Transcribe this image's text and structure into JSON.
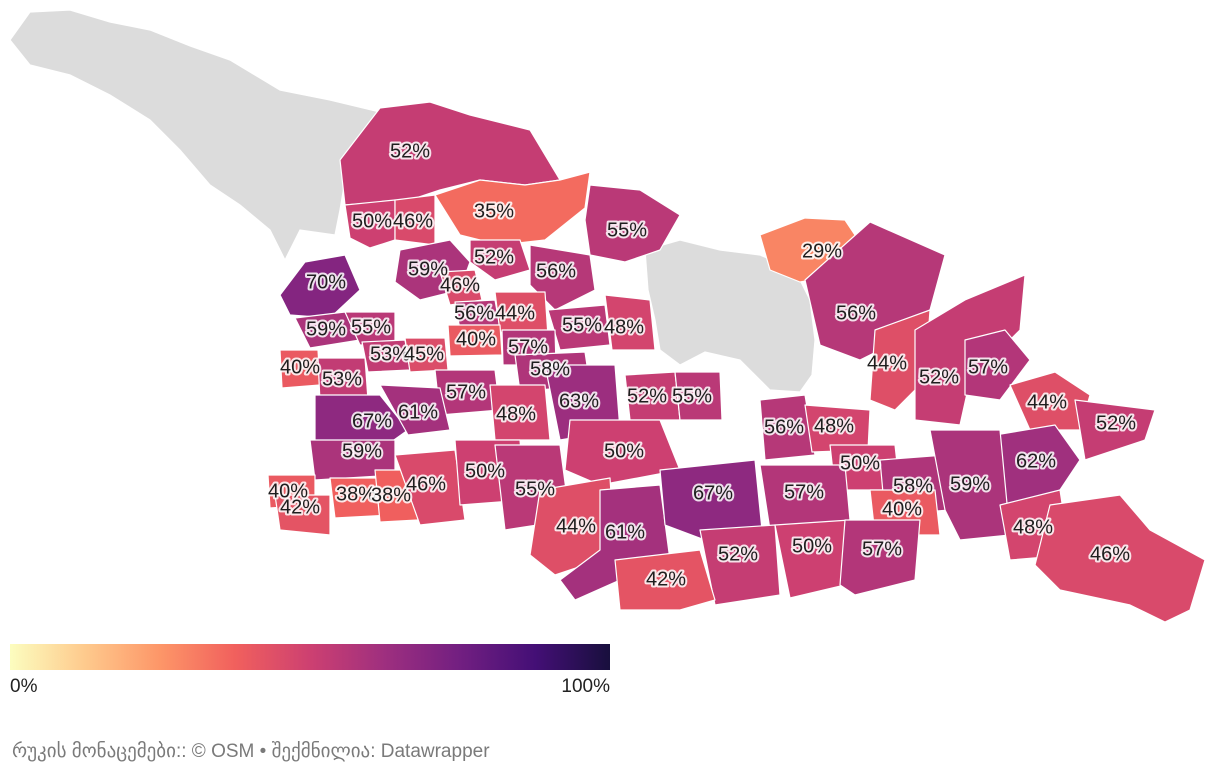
{
  "map": {
    "regions": [
      {
        "id": "r01",
        "label": "52%",
        "value": 52
      },
      {
        "id": "r02",
        "label": "50%",
        "value": 50
      },
      {
        "id": "r03",
        "label": "46%",
        "value": 46
      },
      {
        "id": "r04",
        "label": "35%",
        "value": 35
      },
      {
        "id": "r05",
        "label": "55%",
        "value": 55
      },
      {
        "id": "r06",
        "label": "29%",
        "value": 29
      },
      {
        "id": "r07",
        "label": "70%",
        "value": 70
      },
      {
        "id": "r08",
        "label": "59%",
        "value": 59
      },
      {
        "id": "r09",
        "label": "52%",
        "value": 52
      },
      {
        "id": "r10",
        "label": "56%",
        "value": 56
      },
      {
        "id": "r11",
        "label": "46%",
        "value": 46
      },
      {
        "id": "r12",
        "label": "56%",
        "value": 56
      },
      {
        "id": "r13",
        "label": "44%",
        "value": 44
      },
      {
        "id": "r14",
        "label": "59%",
        "value": 59
      },
      {
        "id": "r15",
        "label": "55%",
        "value": 55
      },
      {
        "id": "r16",
        "label": "55%",
        "value": 55
      },
      {
        "id": "r17",
        "label": "48%",
        "value": 48
      },
      {
        "id": "r18",
        "label": "56%",
        "value": 56
      },
      {
        "id": "r19",
        "label": "53%",
        "value": 53
      },
      {
        "id": "r20",
        "label": "45%",
        "value": 45
      },
      {
        "id": "r21",
        "label": "40%",
        "value": 40
      },
      {
        "id": "r22",
        "label": "57%",
        "value": 57
      },
      {
        "id": "r23",
        "label": "40%",
        "value": 40
      },
      {
        "id": "r24",
        "label": "53%",
        "value": 53
      },
      {
        "id": "r25",
        "label": "58%",
        "value": 58
      },
      {
        "id": "r26",
        "label": "44%",
        "value": 44
      },
      {
        "id": "r27",
        "label": "52%",
        "value": 52
      },
      {
        "id": "r28",
        "label": "57%",
        "value": 57
      },
      {
        "id": "r29",
        "label": "57%",
        "value": 57
      },
      {
        "id": "r30",
        "label": "52%",
        "value": 52
      },
      {
        "id": "r31",
        "label": "55%",
        "value": 55
      },
      {
        "id": "r32",
        "label": "44%",
        "value": 44
      },
      {
        "id": "r33",
        "label": "67%",
        "value": 67
      },
      {
        "id": "r34",
        "label": "61%",
        "value": 61
      },
      {
        "id": "r35",
        "label": "48%",
        "value": 48
      },
      {
        "id": "r36",
        "label": "63%",
        "value": 63
      },
      {
        "id": "r37",
        "label": "56%",
        "value": 56
      },
      {
        "id": "r38",
        "label": "48%",
        "value": 48
      },
      {
        "id": "r39",
        "label": "52%",
        "value": 52
      },
      {
        "id": "r40",
        "label": "59%",
        "value": 59
      },
      {
        "id": "r41",
        "label": "50%",
        "value": 50
      },
      {
        "id": "r42",
        "label": "62%",
        "value": 62
      },
      {
        "id": "r43",
        "label": "50%",
        "value": 50
      },
      {
        "id": "r44",
        "label": "58%",
        "value": 58
      },
      {
        "id": "r45",
        "label": "59%",
        "value": 59
      },
      {
        "id": "r46",
        "label": "40%",
        "value": 40
      },
      {
        "id": "r47",
        "label": "38%",
        "value": 38
      },
      {
        "id": "r48",
        "label": "38%",
        "value": 38
      },
      {
        "id": "r49",
        "label": "46%",
        "value": 46
      },
      {
        "id": "r50",
        "label": "50%",
        "value": 50
      },
      {
        "id": "r51",
        "label": "55%",
        "value": 55
      },
      {
        "id": "r52",
        "label": "42%",
        "value": 42
      },
      {
        "id": "r53",
        "label": "44%",
        "value": 44
      },
      {
        "id": "r54",
        "label": "61%",
        "value": 61
      },
      {
        "id": "r55",
        "label": "67%",
        "value": 67
      },
      {
        "id": "r56",
        "label": "57%",
        "value": 57
      },
      {
        "id": "r57",
        "label": "40%",
        "value": 40
      },
      {
        "id": "r58",
        "label": "48%",
        "value": 48
      },
      {
        "id": "r59",
        "label": "52%",
        "value": 52
      },
      {
        "id": "r60",
        "label": "50%",
        "value": 50
      },
      {
        "id": "r61",
        "label": "57%",
        "value": 57
      },
      {
        "id": "r62",
        "label": "42%",
        "value": 42
      },
      {
        "id": "r63",
        "label": "46%",
        "value": 46
      }
    ],
    "nodata_color": "#dcdcdc"
  },
  "legend": {
    "min_label": "0%",
    "max_label": "100%",
    "colors": [
      "#fcfdbf",
      "#feca8d",
      "#fd9668",
      "#f1605d",
      "#cd4071",
      "#9e2f7f",
      "#721f81",
      "#440f76",
      "#180f3d"
    ]
  },
  "footer": {
    "text": "რუკის მონაცემები:: © OSM  • შექმნილია: Datawrapper"
  }
}
